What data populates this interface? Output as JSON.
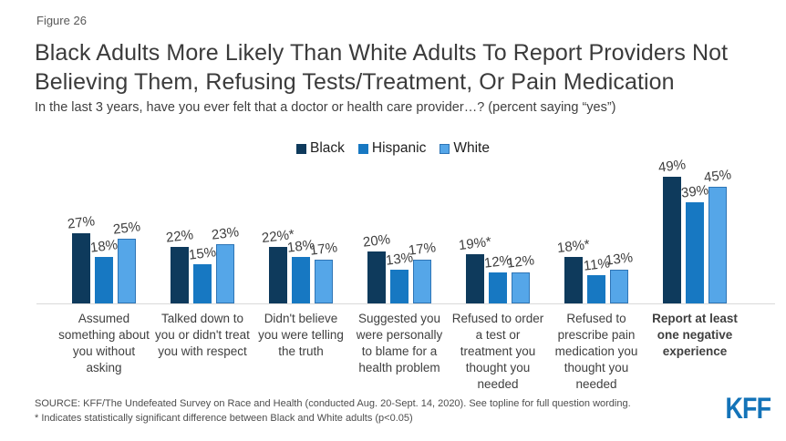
{
  "header": {
    "figure_label": "Figure 26",
    "title": "Black Adults More Likely Than White Adults To Report Providers Not Believing Them, Refusing Tests/Treatment, Or Pain Medication",
    "subtitle": "In the last 3 years, have you ever felt that a doctor or health care provider…? (percent saying “yes”)"
  },
  "chart_data": {
    "type": "bar",
    "title": "Black Adults More Likely Than White Adults To Report Providers Not Believing Them, Refusing Tests/Treatment, Or Pain Medication",
    "subtitle": "In the last 3 years, have you ever felt that a doctor or health care provider…? (percent saying “yes”)",
    "categories": [
      "Assumed something about you without asking",
      "Talked down to you or didn't treat you with respect",
      "Didn't believe you were telling the truth",
      "Suggested you were personally to blame for a health problem",
      "Refused to order a test or treatment you thought you needed",
      "Refused to prescribe pain medication you thought you needed",
      "Report at least one negative experience"
    ],
    "series": [
      {
        "name": "Black",
        "color": "#0E3A5C",
        "values": [
          27,
          22,
          22,
          20,
          19,
          18,
          49
        ],
        "labels": [
          "27%",
          "22%",
          "22%*",
          "20%",
          "19%*",
          "18%*",
          "49%"
        ]
      },
      {
        "name": "Hispanic",
        "color": "#1778C2",
        "values": [
          18,
          15,
          18,
          13,
          12,
          11,
          39
        ],
        "labels": [
          "18%",
          "15%",
          "18%",
          "13%",
          "12%",
          "11%",
          "39%"
        ]
      },
      {
        "name": "White",
        "color": "#55A6E8",
        "border": "#2E75B6",
        "values": [
          25,
          23,
          17,
          17,
          12,
          13,
          45
        ],
        "labels": [
          "25%",
          "23%",
          "17%",
          "17%",
          "12%",
          "13%",
          "45%"
        ]
      }
    ],
    "ylim": [
      0,
      52
    ],
    "grid": false,
    "legend_position": "top",
    "value_labels": true,
    "emphasized_category_index": 6,
    "axis_line_color": "#d9d9d9"
  },
  "footer": {
    "source": "SOURCE: KFF/The Undefeated Survey on Race and Health (conducted Aug. 20-Sept. 14, 2020). See topline for full question wording.",
    "note": "* Indicates statistically significant difference between Black and White adults (p<0.05)",
    "logo_text": "KFF",
    "logo_color": "#1373B8"
  }
}
